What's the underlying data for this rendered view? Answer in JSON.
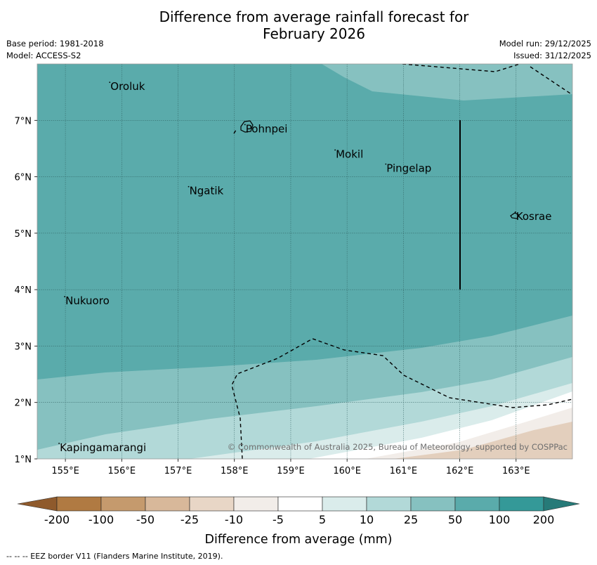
{
  "title": {
    "line1": "Difference from average rainfall forecast for",
    "line2": "February 2026"
  },
  "meta": {
    "base_period": "Base period: 1981-2018",
    "model": "Model: ACCESS-S2",
    "model_run": "Model run: 29/12/2025",
    "issued": "Issued: 31/12/2025"
  },
  "map": {
    "lat_range": [
      1,
      8
    ],
    "lon_range": [
      154.5,
      164
    ],
    "lat_labels": [
      "1°N",
      "2°N",
      "3°N",
      "4°N",
      "5°N",
      "6°N",
      "7°N"
    ],
    "lon_labels": [
      "155°E",
      "156°E",
      "157°E",
      "158°E",
      "159°E",
      "160°E",
      "161°E",
      "162°E",
      "163°E"
    ],
    "places": [
      {
        "name": "Oroluk",
        "lon": 155.8,
        "lat": 7.6
      },
      {
        "name": "Pohnpei",
        "lon": 158.2,
        "lat": 6.85
      },
      {
        "name": "Mokil",
        "lon": 159.8,
        "lat": 6.4
      },
      {
        "name": "Pingelap",
        "lon": 160.7,
        "lat": 6.15
      },
      {
        "name": "Ngatik",
        "lon": 157.2,
        "lat": 5.75
      },
      {
        "name": "Kosrae",
        "lon": 163.0,
        "lat": 5.3
      },
      {
        "name": "Nukuoro",
        "lon": 155.0,
        "lat": 3.8
      },
      {
        "name": "Kapingamarangi",
        "lon": 154.9,
        "lat": 1.2
      }
    ],
    "copyright": "© Commonwealth of Australia 2025, Bureau of Meteorology, supported by COSPPac"
  },
  "colorbar": {
    "ticks": [
      "-200",
      "-100",
      "-50",
      "-25",
      "-10",
      "-5",
      "5",
      "10",
      "25",
      "50",
      "100",
      "200"
    ],
    "colors": [
      "#b07a42",
      "#c59a6d",
      "#d8b89a",
      "#e8d6c6",
      "#f2ede9",
      "#ffffff",
      "#daeceb",
      "#b2d9d8",
      "#86c1c0",
      "#5aabab",
      "#349998"
    ],
    "under_color": "#8f5a2c",
    "over_color": "#267a78",
    "label": "Difference from average (mm)"
  },
  "footer": "-- -- -- EEZ border V11 (Flanders Marine Institute, 2019)."
}
